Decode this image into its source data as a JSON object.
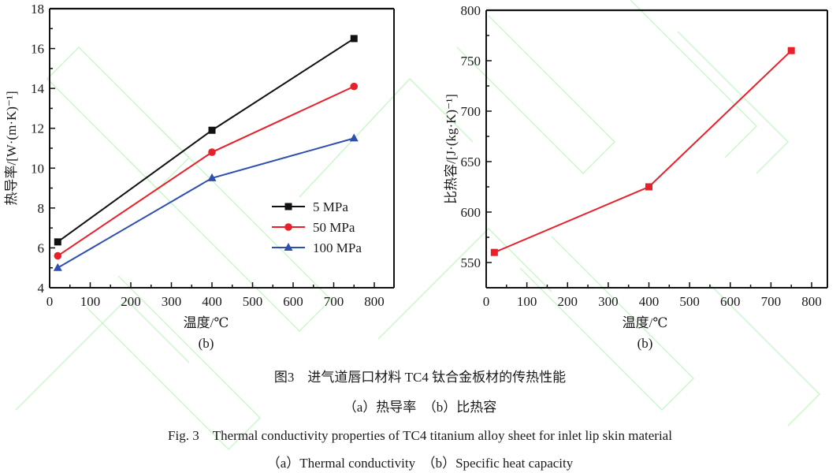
{
  "chart_data": [
    {
      "type": "line",
      "panel_label": "(b)",
      "title": "",
      "xlabel": "温度/℃",
      "ylabel": "热导率/[W·(m·K)⁻¹]",
      "xlim": [
        0,
        850
      ],
      "ylim": [
        4,
        18
      ],
      "xticks": [
        0,
        100,
        200,
        300,
        400,
        500,
        600,
        700,
        800
      ],
      "yticks": [
        4,
        6,
        8,
        10,
        12,
        14,
        16,
        18
      ],
      "grid": false,
      "legend_position": "lower-right",
      "x": [
        20,
        400,
        750
      ],
      "series": [
        {
          "name": "5 MPa",
          "values": [
            6.3,
            11.9,
            16.5
          ],
          "color": "#111111",
          "marker": "square"
        },
        {
          "name": "50 MPa",
          "values": [
            5.6,
            10.8,
            14.1
          ],
          "color": "#e8202a",
          "marker": "circle"
        },
        {
          "name": "100 MPa",
          "values": [
            5.0,
            9.5,
            11.5
          ],
          "color": "#2f4fb0",
          "marker": "triangle"
        }
      ]
    },
    {
      "type": "line",
      "panel_label": "(b)",
      "title": "",
      "xlabel": "温度/℃",
      "ylabel": "比热容/[J·(kg·K)⁻¹]",
      "xlim": [
        0,
        850
      ],
      "ylim": [
        525,
        800
      ],
      "xticks": [
        0,
        100,
        200,
        300,
        400,
        500,
        600,
        700,
        800
      ],
      "yticks": [
        550,
        600,
        650,
        700,
        750,
        800
      ],
      "grid": false,
      "legend_position": "none",
      "x": [
        20,
        400,
        750
      ],
      "series": [
        {
          "name": "比热容",
          "values": [
            560,
            625,
            760
          ],
          "color": "#e8202a",
          "marker": "square"
        }
      ]
    }
  ],
  "captions": {
    "cn_title": "图3　进气道唇口材料 TC4 钛合金板材的传热性能",
    "cn_sub": "（a）热导率　（b）比热容",
    "en_title": "Fig. 3　Thermal conductivity properties of TC4 titanium alloy sheet for inlet lip skin material",
    "en_sub": "（a）Thermal conductivity　（b）Specific heat capacity"
  }
}
